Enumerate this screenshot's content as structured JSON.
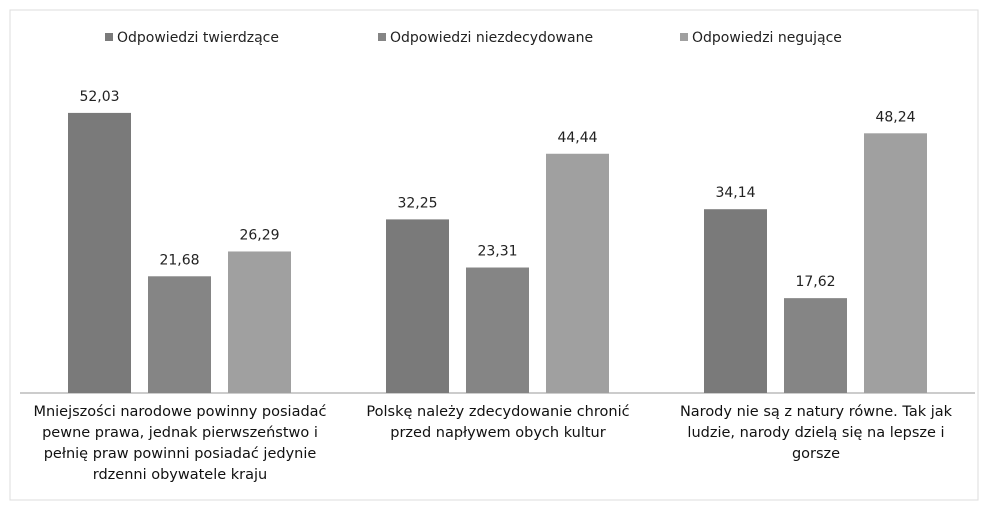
{
  "chart_data": {
    "type": "bar",
    "categories": [
      "Mniejszości narodowe powinny posiadać pewne prawa, jednak pierwszeństwo i pełnię praw powinni posiadać jedynie rdzenni obywatele kraju",
      "Polskę należy zdecydowanie chronić przed napływem obych kultur",
      "Narody nie są z natury równe. Tak jak ludzie, narody dzielą się na lepsze i gorsze"
    ],
    "series": [
      {
        "name": "Odpowiedzi twierdzące",
        "color": "#7a7a7a",
        "values": [
          52.03,
          32.25,
          34.14
        ],
        "value_labels": [
          "52,03",
          "32,25",
          "34,14"
        ]
      },
      {
        "name": "Odpowiedzi niezdecydowane",
        "color": "#858585",
        "values": [
          21.68,
          23.31,
          17.62
        ],
        "value_labels": [
          "21,68",
          "23,31",
          "17,62"
        ]
      },
      {
        "name": "Odpowiedzi negujące",
        "color": "#a0a0a0",
        "values": [
          26.29,
          44.44,
          48.24
        ],
        "value_labels": [
          "26,29",
          "44,44",
          "48,24"
        ]
      }
    ],
    "ylim": [
      0,
      60
    ],
    "legend": "top"
  }
}
